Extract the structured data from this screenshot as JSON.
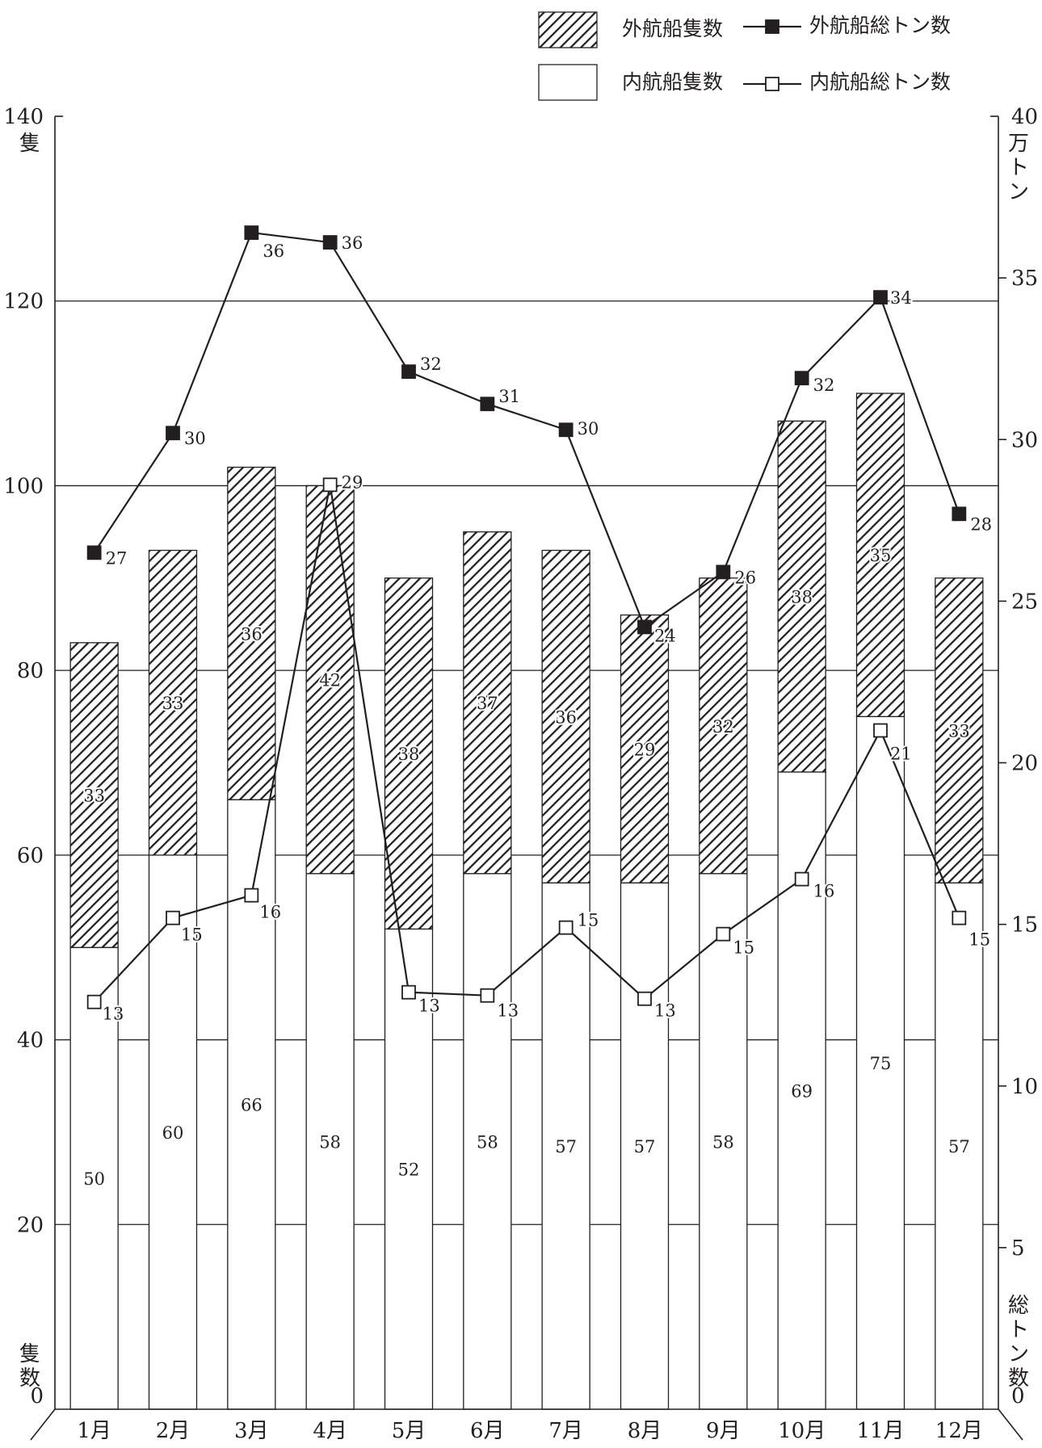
{
  "chart_data": {
    "type": "bar",
    "categories": [
      "1月",
      "2月",
      "3月",
      "4月",
      "5月",
      "6月",
      "7月",
      "8月",
      "9月",
      "10月",
      "11月",
      "12月"
    ],
    "series": [
      {
        "name": "内航船隻数",
        "kind": "bar",
        "axis": "left",
        "pattern": "solid-white",
        "values": [
          50,
          60,
          66,
          58,
          52,
          58,
          57,
          57,
          58,
          69,
          75,
          57
        ]
      },
      {
        "name": "外航船隻数",
        "kind": "bar",
        "axis": "left",
        "pattern": "hatched",
        "values": [
          33,
          33,
          36,
          42,
          38,
          37,
          36,
          29,
          32,
          38,
          35,
          33
        ]
      },
      {
        "name": "外航船総トン数",
        "kind": "line",
        "axis": "right",
        "marker": "filled-square",
        "values": [
          26.5,
          30.2,
          36.4,
          36.1,
          32.1,
          31.1,
          30.3,
          24.2,
          25.9,
          31.9,
          34.4,
          27.7
        ],
        "labels": [
          "27",
          "30",
          "36",
          "36",
          "32",
          "31",
          "30",
          "24",
          "26",
          "32",
          "34",
          "28"
        ]
      },
      {
        "name": "内航船総トン数",
        "kind": "line",
        "axis": "right",
        "marker": "open-square",
        "values": [
          12.6,
          15.2,
          15.9,
          28.6,
          12.9,
          12.8,
          14.9,
          12.7,
          14.7,
          16.4,
          21.0,
          15.2
        ],
        "labels": [
          "13",
          "15",
          "16",
          "29",
          "13",
          "13",
          "15",
          "13",
          "15",
          "16",
          "21",
          "15"
        ]
      }
    ],
    "left_axis": {
      "label_top": "隻",
      "label_bottom": "隻数",
      "ylim": [
        0,
        140
      ],
      "ticks": [
        "0",
        "20",
        "40",
        "60",
        "80",
        "100",
        "120",
        "140"
      ]
    },
    "right_axis": {
      "label_top": "万トン",
      "label_bottom": "総トン数",
      "ylim": [
        0,
        40
      ],
      "ticks": [
        "0",
        "5",
        "10",
        "15",
        "20",
        "25",
        "30",
        "35",
        "40"
      ]
    },
    "gridlines": [
      20,
      40,
      60,
      80,
      100,
      120
    ],
    "legend_position": "top-right"
  }
}
